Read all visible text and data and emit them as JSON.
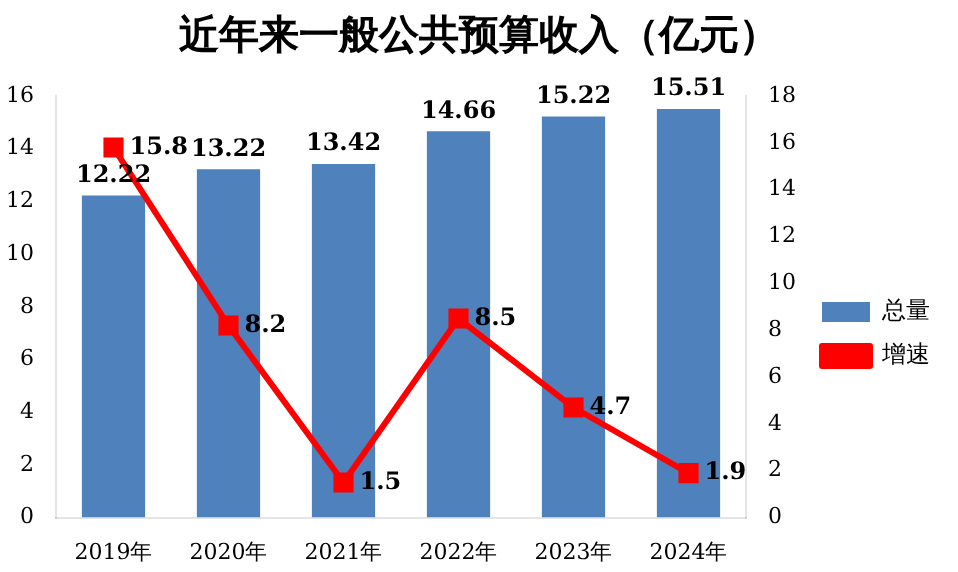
{
  "chart_data": {
    "type": "bar",
    "title": "近年来一般公共预算收入（亿元）",
    "categories": [
      "2019年",
      "2020年",
      "2021年",
      "2022年",
      "2023年",
      "2024年"
    ],
    "series": [
      {
        "name": "总量",
        "color": "#4f81bd",
        "values": [
          12.22,
          13.22,
          13.42,
          14.66,
          15.22,
          15.51
        ]
      },
      {
        "name": "增速",
        "type": "line",
        "axis": "y2",
        "color": "#ff0000",
        "values": [
          15.8,
          8.2,
          1.5,
          8.5,
          4.7,
          1.9
        ]
      }
    ],
    "ylim": [
      0,
      16
    ],
    "yticks": [
      0,
      2,
      4,
      6,
      8,
      10,
      12,
      14,
      16
    ],
    "y2lim": [
      0,
      18
    ],
    "y2ticks": [
      0,
      2,
      4,
      6,
      8,
      10,
      12,
      14,
      16,
      18
    ],
    "legend": "right",
    "data_labels": true,
    "marker": "square"
  }
}
